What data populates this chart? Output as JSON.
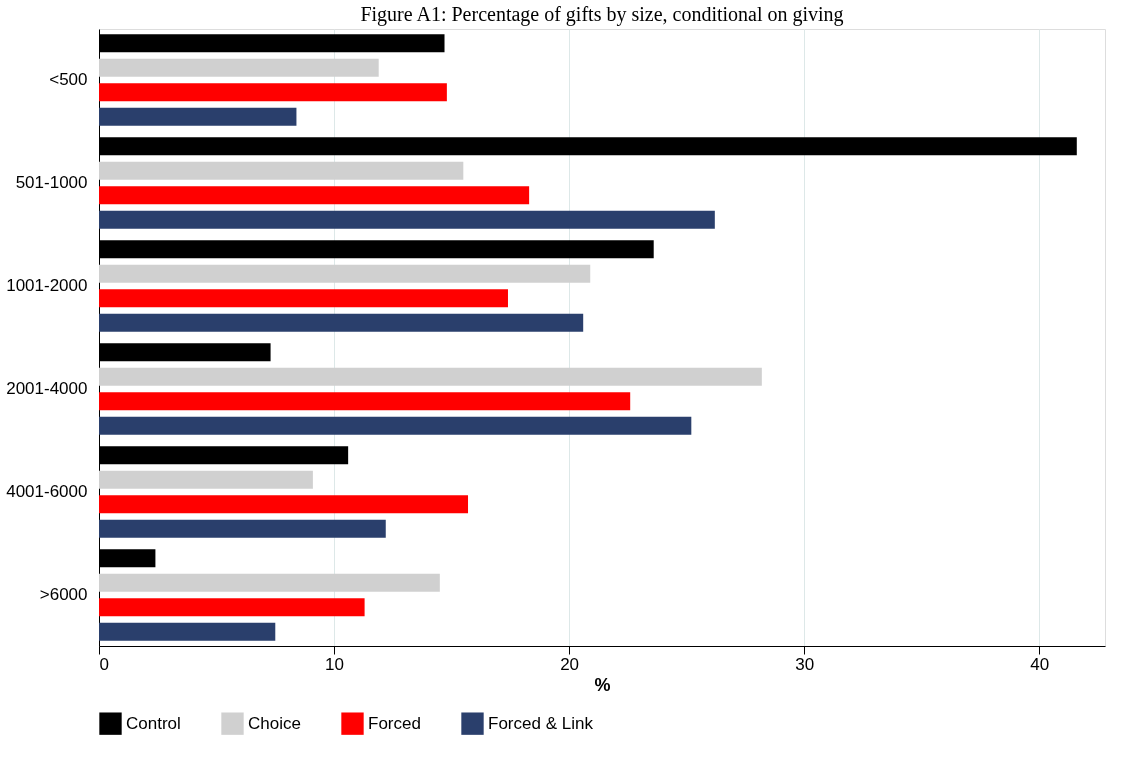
{
  "chart_data": {
    "type": "bar",
    "orientation": "horizontal",
    "title": "Figure A1: Percentage of gifts by size, conditional on giving",
    "xlabel": "%",
    "categories": [
      "<500",
      "501-1000",
      "1001-2000",
      "2001-4000",
      "4001-6000",
      ">6000"
    ],
    "series": [
      {
        "name": "Control",
        "color": "#000000",
        "values": [
          14.7,
          41.6,
          23.6,
          7.3,
          10.6,
          2.4
        ]
      },
      {
        "name": "Choice",
        "color": "#d0d0d0",
        "values": [
          11.9,
          15.5,
          20.9,
          28.2,
          9.1,
          14.5
        ]
      },
      {
        "name": "Forced",
        "color": "#ff0000",
        "values": [
          14.8,
          18.3,
          17.4,
          22.6,
          15.7,
          11.3
        ]
      },
      {
        "name": "Forced & Link",
        "color": "#2a3f6c",
        "values": [
          8.4,
          26.2,
          20.6,
          25.2,
          12.2,
          7.5
        ]
      }
    ],
    "xlim": [
      0,
      42.8
    ],
    "xticks": [
      0,
      10,
      20,
      30,
      40
    ],
    "grid": "x",
    "legend": "bottom"
  }
}
